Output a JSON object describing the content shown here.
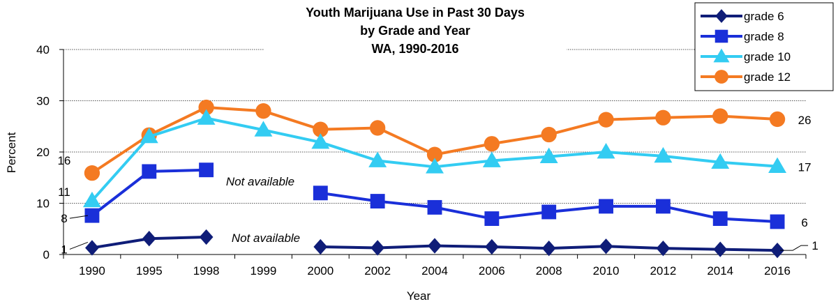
{
  "chart_data": {
    "type": "line",
    "title_lines": [
      "Youth Marijuana Use in Past 30 Days",
      "by Grade and Year",
      "WA, 1990-2016"
    ],
    "xlabel": "Year",
    "ylabel": "Percent",
    "categories": [
      "1990",
      "1995",
      "1998",
      "1999",
      "2000",
      "2002",
      "2004",
      "2006",
      "2008",
      "2010",
      "2012",
      "2014",
      "2016"
    ],
    "yticks": [
      "0",
      "10",
      "20",
      "30",
      "40"
    ],
    "ylim": [
      0,
      40
    ],
    "grid": true,
    "legend_position": "top-right",
    "series": [
      {
        "name": "grade 6",
        "color": "#0f1d78",
        "marker": "diamond",
        "values": [
          1.3,
          3.1,
          3.4,
          null,
          1.5,
          1.3,
          1.7,
          1.5,
          1.2,
          1.6,
          1.2,
          1.0,
          0.8
        ]
      },
      {
        "name": "grade 8",
        "color": "#1a2fd9",
        "marker": "square",
        "values": [
          7.6,
          16.2,
          16.5,
          null,
          12.0,
          10.4,
          9.2,
          7.0,
          8.3,
          9.4,
          9.4,
          7.0,
          6.4
        ]
      },
      {
        "name": "grade 10",
        "color": "#33ccf2",
        "marker": "triangle",
        "values": [
          10.5,
          23.0,
          26.6,
          24.3,
          21.9,
          18.3,
          17.1,
          18.3,
          19.1,
          20.0,
          19.2,
          18.0,
          17.2
        ]
      },
      {
        "name": "grade 12",
        "color": "#f47a22",
        "marker": "circle",
        "values": [
          15.9,
          23.3,
          28.7,
          28.0,
          24.4,
          24.7,
          19.5,
          21.6,
          23.4,
          26.3,
          26.7,
          27.0,
          26.4
        ]
      }
    ],
    "start_labels": [
      "1",
      "8",
      "11",
      "16"
    ],
    "end_labels": [
      "1",
      "6",
      "17",
      "26"
    ],
    "annotations": [
      "Not available",
      "Not available"
    ]
  }
}
